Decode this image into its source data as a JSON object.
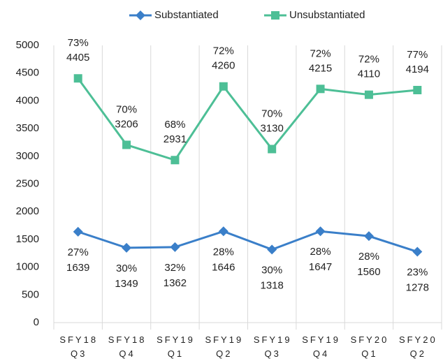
{
  "chart_data": {
    "type": "line",
    "categories": [
      "SFY18 Q3",
      "SFY18 Q4",
      "SFY19 Q1",
      "SFY19 Q2",
      "SFY19 Q3",
      "SFY19 Q4",
      "SFY20 Q1",
      "SFY20 Q2"
    ],
    "series": [
      {
        "name": "Substantiated",
        "color": "#3a7fc9",
        "marker": "diamond",
        "values": [
          1639,
          1349,
          1362,
          1646,
          1318,
          1647,
          1560,
          1278
        ],
        "share_labels": [
          "27%",
          "30%",
          "32%",
          "28%",
          "30%",
          "28%",
          "28%",
          "23%"
        ]
      },
      {
        "name": "Unsubstantiated",
        "color": "#4dbf96",
        "marker": "square",
        "values": [
          4405,
          3206,
          2931,
          4260,
          3130,
          4215,
          4110,
          4194
        ],
        "share_labels": [
          "73%",
          "70%",
          "68%",
          "72%",
          "70%",
          "72%",
          "72%",
          "77%"
        ]
      }
    ],
    "ylim": [
      0,
      5000
    ],
    "yticks": [
      0,
      500,
      1000,
      1500,
      2000,
      2500,
      3000,
      3500,
      4000,
      4500,
      5000
    ],
    "legend": "top",
    "grid": "vertical"
  }
}
